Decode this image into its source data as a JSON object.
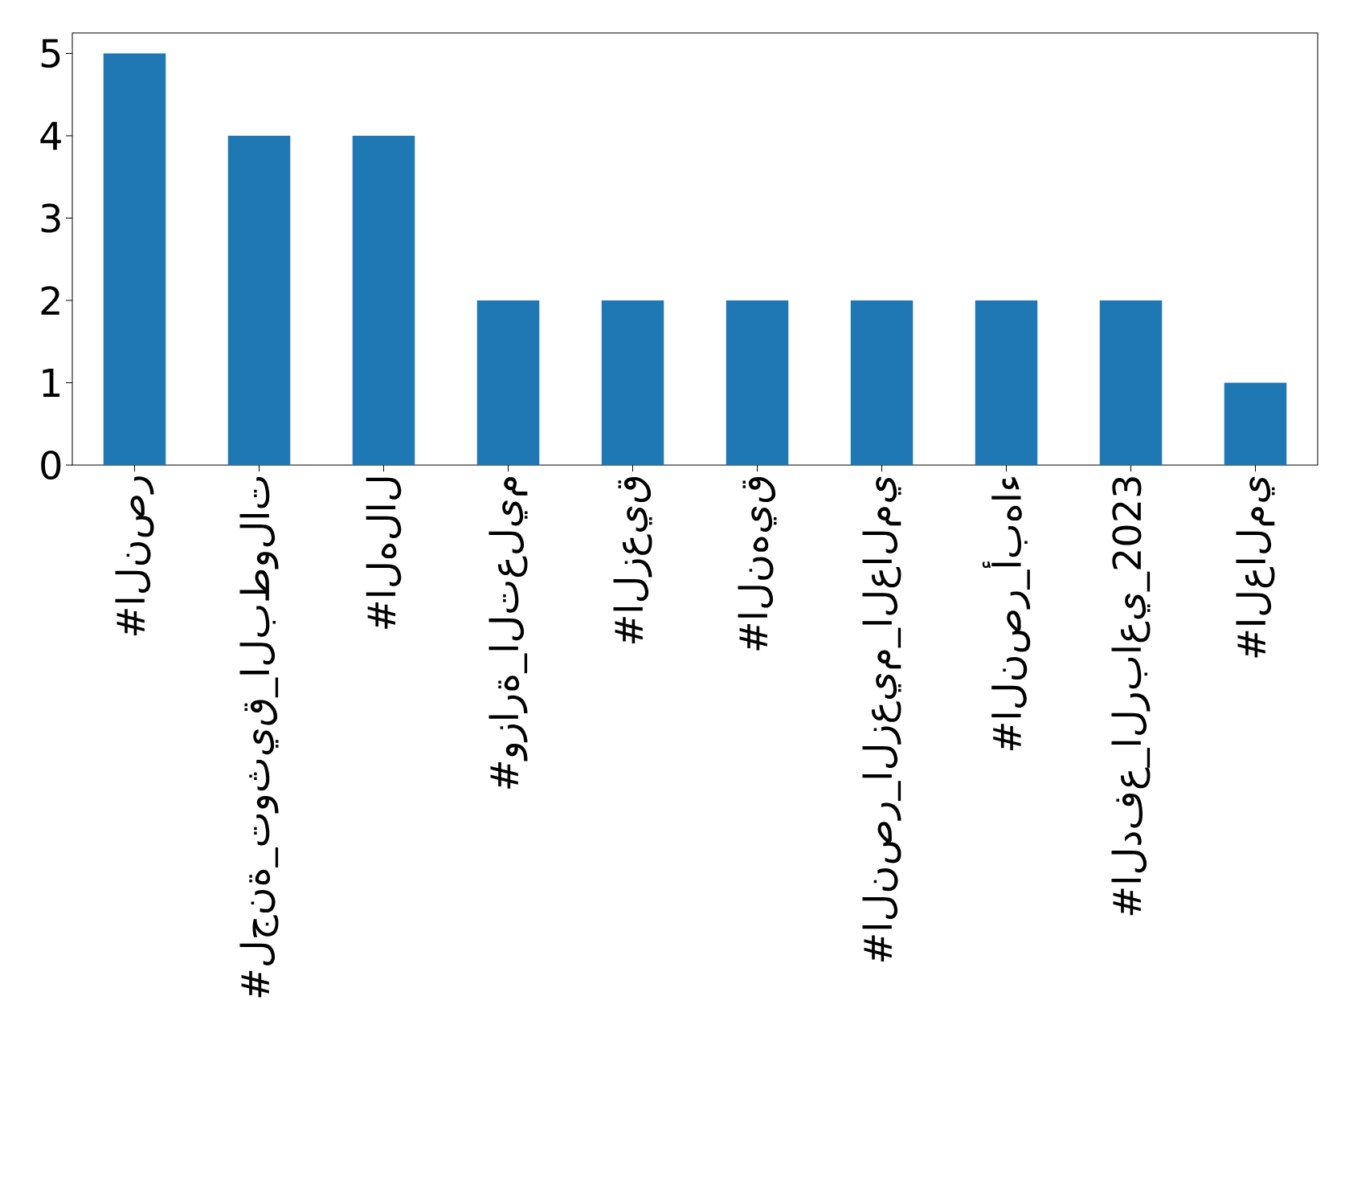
{
  "chart_data": {
    "type": "bar",
    "categories": [
      "#النصر",
      "#لجنة_توثيق_البطولات",
      "#الهلال",
      "#وزارة_التعليم",
      "#الزعيق",
      "#النهيق",
      "#النصر_الزعيم_العالمي",
      "#النصر_أبهاء",
      "#الدفع_الرباعي_2023",
      "#العالمي"
    ],
    "values": [
      5,
      4,
      4,
      2,
      2,
      2,
      2,
      2,
      2,
      1
    ],
    "color": "#1f77b4",
    "ylim": [
      0,
      5.25
    ],
    "yticks": [
      0,
      1,
      2,
      3,
      4,
      5
    ]
  }
}
